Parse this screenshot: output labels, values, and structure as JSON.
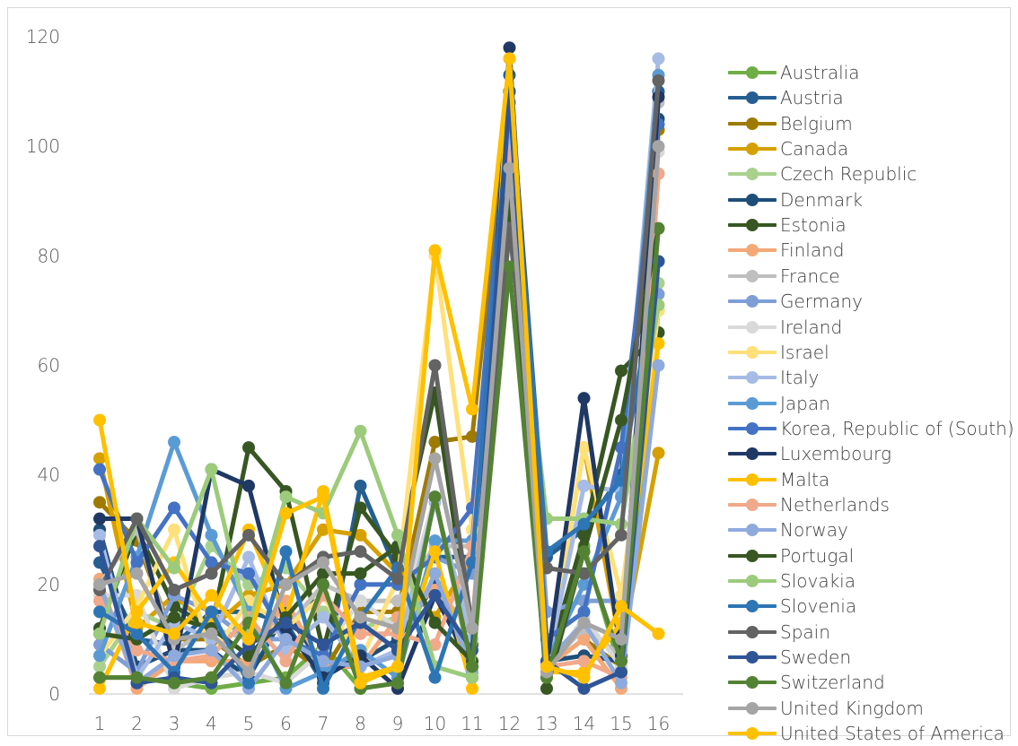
{
  "chart_data": {
    "type": "line",
    "title": "",
    "xlabel": "",
    "ylabel": "",
    "ylim": [
      0,
      120
    ],
    "yticks": [
      0,
      20,
      40,
      60,
      80,
      100,
      120
    ],
    "categories": [
      "1",
      "2",
      "3",
      "4",
      "5",
      "6",
      "7",
      "8",
      "9",
      "10",
      "11",
      "12",
      "13",
      "14",
      "15",
      "16"
    ],
    "grid": false,
    "legend_position": "right",
    "series": [
      {
        "name": "Australia",
        "color": "#70ad47",
        "values": [
          3,
          3,
          2,
          1,
          2,
          3,
          9,
          1,
          2,
          36,
          4,
          97,
          4,
          27,
          4,
          70
        ]
      },
      {
        "name": "Austria",
        "color": "#255e91",
        "values": [
          24,
          10,
          9,
          15,
          15,
          13,
          2,
          38,
          22,
          25,
          25,
          113,
          25,
          30,
          40,
          110
        ]
      },
      {
        "name": "Belgium",
        "color": "#9e7b00",
        "values": [
          35,
          28,
          10,
          10,
          5,
          9,
          4,
          15,
          15,
          46,
          47,
          110,
          5,
          10,
          5,
          103
        ]
      },
      {
        "name": "Canada",
        "color": "#d6a000",
        "values": [
          43,
          12,
          18,
          12,
          18,
          20,
          30,
          29,
          22,
          14,
          25,
          108,
          5,
          45,
          8,
          44
        ]
      },
      {
        "name": "Czech Republic",
        "color": "#a9d18e",
        "values": [
          5,
          15,
          12,
          27,
          20,
          23,
          15,
          12,
          14,
          20,
          3,
          92,
          32,
          32,
          31,
          75
        ]
      },
      {
        "name": "Denmark",
        "color": "#1f4e79",
        "values": [
          30,
          5,
          8,
          8,
          3,
          15,
          5,
          6,
          10,
          20,
          3,
          108,
          6,
          7,
          6,
          105
        ]
      },
      {
        "name": "Estonia",
        "color": "#375623",
        "values": [
          12,
          30,
          16,
          12,
          45,
          37,
          8,
          34,
          25,
          55,
          9,
          110,
          5,
          29,
          59,
          66
        ]
      },
      {
        "name": "Finland",
        "color": "#f4a877",
        "values": [
          21,
          1,
          6,
          6,
          6,
          17,
          5,
          5,
          14,
          19,
          12,
          102,
          5,
          10,
          1,
          95
        ]
      },
      {
        "name": "France",
        "color": "#bfbfbf",
        "values": [
          20,
          30,
          8,
          12,
          10,
          12,
          20,
          17,
          17,
          27,
          27,
          105,
          5,
          12,
          7,
          108
        ]
      },
      {
        "name": "Germany",
        "color": "#7f9ed6",
        "values": [
          9,
          4,
          18,
          15,
          10,
          10,
          7,
          20,
          20,
          25,
          22,
          108,
          15,
          17,
          17,
          73
        ]
      },
      {
        "name": "Ireland",
        "color": "#d9d9d9",
        "values": [
          18,
          18,
          1,
          3,
          4,
          2,
          8,
          17,
          12,
          36,
          5,
          90,
          4,
          14,
          5,
          99
        ]
      },
      {
        "name": "Israel",
        "color": "#ffe07a",
        "values": [
          7,
          16,
          30,
          7,
          17,
          12,
          18,
          6,
          21,
          80,
          30,
          100,
          5,
          45,
          18,
          70
        ]
      },
      {
        "name": "Italy",
        "color": "#a6bbe5",
        "values": [
          29,
          3,
          13,
          10,
          25,
          8,
          14,
          5,
          8,
          35,
          10,
          98,
          5,
          38,
          37,
          116
        ]
      },
      {
        "name": "Japan",
        "color": "#5b9bd5",
        "values": [
          7,
          25,
          46,
          29,
          15,
          1,
          4,
          8,
          3,
          28,
          28,
          108,
          6,
          20,
          36,
          113
        ]
      },
      {
        "name": "Korea, Republic of (South)",
        "color": "#4472c4",
        "values": [
          41,
          24,
          34,
          24,
          22,
          10,
          7,
          20,
          20,
          25,
          34,
          110,
          10,
          15,
          45,
          104
        ]
      },
      {
        "name": "Luxembourg",
        "color": "#203864",
        "values": [
          32,
          32,
          5,
          41,
          38,
          12,
          3,
          7,
          1,
          18,
          5,
          118,
          5,
          54,
          7,
          109
        ]
      },
      {
        "name": "Malta",
        "color": "#ffc000",
        "values": [
          1,
          15,
          24,
          14,
          30,
          14,
          37,
          3,
          5,
          26,
          1,
          116,
          4,
          4,
          13,
          64
        ]
      },
      {
        "name": "Netherlands",
        "color": "#f0a98a",
        "values": [
          17,
          8,
          6,
          7,
          14,
          6,
          18,
          11,
          11,
          9,
          27,
          100,
          5,
          6,
          3,
          95
        ]
      },
      {
        "name": "Norway",
        "color": "#8faadc",
        "values": [
          20,
          2,
          7,
          8,
          1,
          10,
          6,
          5,
          7,
          22,
          4,
          108,
          6,
          13,
          2,
          60
        ]
      },
      {
        "name": "Portugal",
        "color": "#385723",
        "values": [
          11,
          10,
          14,
          12,
          7,
          14,
          22,
          22,
          27,
          13,
          6,
          90,
          1,
          26,
          50,
          85
        ]
      },
      {
        "name": "Slovakia",
        "color": "#9ccb7c",
        "values": [
          11,
          32,
          23,
          41,
          12,
          36,
          33,
          48,
          29,
          5,
          3,
          85,
          32,
          32,
          31,
          71
        ]
      },
      {
        "name": "Slovenia",
        "color": "#2e75b6",
        "values": [
          15,
          11,
          4,
          15,
          2,
          26,
          1,
          14,
          23,
          3,
          24,
          108,
          26,
          31,
          39,
          79
        ]
      },
      {
        "name": "Spain",
        "color": "#636363",
        "values": [
          19,
          32,
          19,
          22,
          29,
          20,
          25,
          26,
          21,
          60,
          12,
          85,
          23,
          22,
          29,
          112
        ]
      },
      {
        "name": "Sweden",
        "color": "#2f5597",
        "values": [
          27,
          2,
          3,
          2,
          9,
          13,
          9,
          13,
          8,
          18,
          8,
          110,
          6,
          1,
          4,
          79
        ]
      },
      {
        "name": "Switzerland",
        "color": "#548235",
        "values": [
          3,
          3,
          2,
          3,
          13,
          2,
          20,
          1,
          2,
          36,
          5,
          78,
          3,
          26,
          6,
          85
        ]
      },
      {
        "name": "United Kingdom",
        "color": "#a5a5a5",
        "values": [
          20,
          22,
          10,
          11,
          4,
          20,
          24,
          14,
          12,
          43,
          12,
          96,
          4,
          13,
          10,
          100
        ]
      },
      {
        "name": "United States of America",
        "color": "#ffc000",
        "values": [
          50,
          13,
          11,
          18,
          10,
          33,
          36,
          2,
          5,
          81,
          52,
          116,
          5,
          3,
          16,
          11
        ]
      }
    ]
  }
}
